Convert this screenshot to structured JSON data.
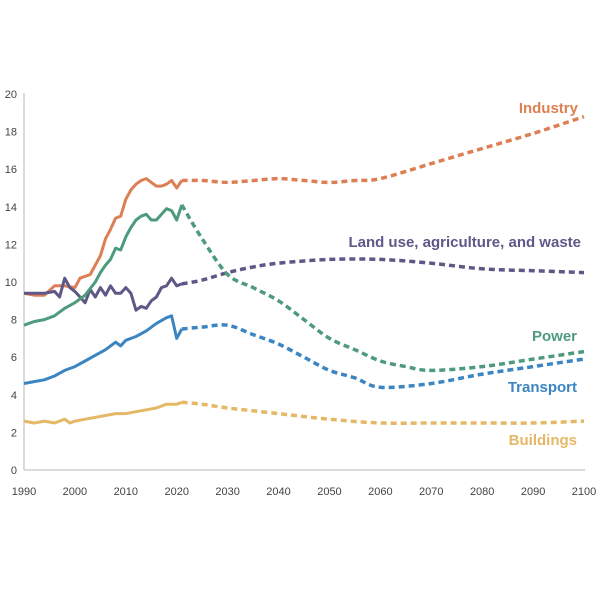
{
  "chart_data": {
    "type": "line",
    "title": "",
    "xlabel": "",
    "ylabel": "",
    "xlim": [
      1990,
      2100
    ],
    "ylim": [
      0,
      20
    ],
    "grid": false,
    "legend": "inline-labels-right",
    "x_ticks": [
      "1990",
      "2000",
      "2010",
      "2020",
      "2030",
      "2040",
      "2050",
      "2060",
      "2070",
      "2080",
      "2090",
      "2100"
    ],
    "y_ticks": [
      "0",
      "2",
      "4",
      "6",
      "8",
      "10",
      "12",
      "14",
      "16",
      "18",
      "20"
    ],
    "series": [
      {
        "name": "Industry",
        "color": "#DD7F54",
        "historical": [
          [
            1990,
            9.4
          ],
          [
            1992,
            9.3
          ],
          [
            1994,
            9.3
          ],
          [
            1996,
            9.8
          ],
          [
            1998,
            9.8
          ],
          [
            2000,
            9.7
          ],
          [
            2001,
            10.2
          ],
          [
            2003,
            10.4
          ],
          [
            2005,
            11.4
          ],
          [
            2006,
            12.3
          ],
          [
            2007,
            12.8
          ],
          [
            2008,
            13.4
          ],
          [
            2009,
            13.5
          ],
          [
            2010,
            14.4
          ],
          [
            2011,
            14.9
          ],
          [
            2012,
            15.2
          ],
          [
            2013,
            15.4
          ],
          [
            2014,
            15.5
          ],
          [
            2015,
            15.3
          ],
          [
            2016,
            15.1
          ],
          [
            2017,
            15.1
          ],
          [
            2018,
            15.2
          ],
          [
            2019,
            15.4
          ],
          [
            2020,
            15.0
          ],
          [
            2021,
            15.4
          ]
        ],
        "projection": [
          [
            2021,
            15.4
          ],
          [
            2025,
            15.4
          ],
          [
            2030,
            15.3
          ],
          [
            2035,
            15.4
          ],
          [
            2040,
            15.5
          ],
          [
            2045,
            15.4
          ],
          [
            2050,
            15.3
          ],
          [
            2055,
            15.4
          ],
          [
            2060,
            15.5
          ],
          [
            2070,
            16.3
          ],
          [
            2080,
            17.1
          ],
          [
            2090,
            17.9
          ],
          [
            2100,
            18.8
          ]
        ]
      },
      {
        "name": "Land use, agriculture, and waste",
        "color": "#5E5887",
        "historical": [
          [
            1990,
            9.4
          ],
          [
            1992,
            9.4
          ],
          [
            1994,
            9.4
          ],
          [
            1996,
            9.5
          ],
          [
            1997,
            9.2
          ],
          [
            1998,
            10.2
          ],
          [
            1999,
            9.7
          ],
          [
            2000,
            9.5
          ],
          [
            2001,
            9.2
          ],
          [
            2002,
            8.9
          ],
          [
            2003,
            9.6
          ],
          [
            2004,
            9.2
          ],
          [
            2005,
            9.7
          ],
          [
            2006,
            9.3
          ],
          [
            2007,
            9.8
          ],
          [
            2008,
            9.4
          ],
          [
            2009,
            9.4
          ],
          [
            2010,
            9.7
          ],
          [
            2011,
            9.4
          ],
          [
            2012,
            8.5
          ],
          [
            2013,
            8.7
          ],
          [
            2014,
            8.6
          ],
          [
            2015,
            9.0
          ],
          [
            2016,
            9.2
          ],
          [
            2017,
            9.7
          ],
          [
            2018,
            9.8
          ],
          [
            2019,
            10.2
          ],
          [
            2020,
            9.8
          ],
          [
            2021,
            9.9
          ]
        ],
        "projection": [
          [
            2021,
            9.9
          ],
          [
            2025,
            10.1
          ],
          [
            2030,
            10.5
          ],
          [
            2035,
            10.8
          ],
          [
            2040,
            11.0
          ],
          [
            2050,
            11.2
          ],
          [
            2060,
            11.2
          ],
          [
            2070,
            11.0
          ],
          [
            2080,
            10.7
          ],
          [
            2090,
            10.6
          ],
          [
            2100,
            10.5
          ]
        ]
      },
      {
        "name": "Power",
        "color": "#4E9A7C",
        "historical": [
          [
            1990,
            7.7
          ],
          [
            1992,
            7.9
          ],
          [
            1994,
            8.0
          ],
          [
            1996,
            8.2
          ],
          [
            1998,
            8.6
          ],
          [
            2000,
            8.9
          ],
          [
            2002,
            9.3
          ],
          [
            2004,
            10.0
          ],
          [
            2005,
            10.5
          ],
          [
            2006,
            10.9
          ],
          [
            2007,
            11.2
          ],
          [
            2008,
            11.8
          ],
          [
            2009,
            11.7
          ],
          [
            2010,
            12.4
          ],
          [
            2011,
            12.9
          ],
          [
            2012,
            13.3
          ],
          [
            2013,
            13.5
          ],
          [
            2014,
            13.6
          ],
          [
            2015,
            13.3
          ],
          [
            2016,
            13.3
          ],
          [
            2017,
            13.6
          ],
          [
            2018,
            13.9
          ],
          [
            2019,
            13.8
          ],
          [
            2020,
            13.3
          ],
          [
            2021,
            14.1
          ]
        ],
        "projection": [
          [
            2021,
            14.1
          ],
          [
            2025,
            12.3
          ],
          [
            2030,
            10.4
          ],
          [
            2035,
            9.7
          ],
          [
            2040,
            9.0
          ],
          [
            2045,
            8.0
          ],
          [
            2050,
            7.0
          ],
          [
            2055,
            6.4
          ],
          [
            2060,
            5.8
          ],
          [
            2065,
            5.5
          ],
          [
            2070,
            5.3
          ],
          [
            2080,
            5.5
          ],
          [
            2090,
            5.9
          ],
          [
            2100,
            6.3
          ]
        ]
      },
      {
        "name": "Transport",
        "color": "#3B85C2",
        "historical": [
          [
            1990,
            4.6
          ],
          [
            1992,
            4.7
          ],
          [
            1994,
            4.8
          ],
          [
            1996,
            5.0
          ],
          [
            1998,
            5.3
          ],
          [
            2000,
            5.5
          ],
          [
            2002,
            5.8
          ],
          [
            2004,
            6.1
          ],
          [
            2006,
            6.4
          ],
          [
            2008,
            6.8
          ],
          [
            2009,
            6.6
          ],
          [
            2010,
            6.9
          ],
          [
            2012,
            7.1
          ],
          [
            2014,
            7.4
          ],
          [
            2016,
            7.8
          ],
          [
            2018,
            8.1
          ],
          [
            2019,
            8.2
          ],
          [
            2020,
            7.0
          ],
          [
            2021,
            7.5
          ]
        ],
        "projection": [
          [
            2021,
            7.5
          ],
          [
            2025,
            7.6
          ],
          [
            2030,
            7.7
          ],
          [
            2035,
            7.2
          ],
          [
            2040,
            6.7
          ],
          [
            2045,
            6.0
          ],
          [
            2050,
            5.3
          ],
          [
            2055,
            4.9
          ],
          [
            2060,
            4.4
          ],
          [
            2070,
            4.6
          ],
          [
            2080,
            5.1
          ],
          [
            2090,
            5.5
          ],
          [
            2100,
            5.9
          ]
        ]
      },
      {
        "name": "Buildings",
        "color": "#E5B865",
        "historical": [
          [
            1990,
            2.6
          ],
          [
            1992,
            2.5
          ],
          [
            1994,
            2.6
          ],
          [
            1996,
            2.5
          ],
          [
            1998,
            2.7
          ],
          [
            1999,
            2.5
          ],
          [
            2000,
            2.6
          ],
          [
            2002,
            2.7
          ],
          [
            2004,
            2.8
          ],
          [
            2006,
            2.9
          ],
          [
            2008,
            3.0
          ],
          [
            2010,
            3.0
          ],
          [
            2012,
            3.1
          ],
          [
            2014,
            3.2
          ],
          [
            2016,
            3.3
          ],
          [
            2018,
            3.5
          ],
          [
            2020,
            3.5
          ],
          [
            2021,
            3.6
          ]
        ],
        "projection": [
          [
            2021,
            3.6
          ],
          [
            2025,
            3.5
          ],
          [
            2030,
            3.3
          ],
          [
            2040,
            3.0
          ],
          [
            2050,
            2.7
          ],
          [
            2060,
            2.5
          ],
          [
            2070,
            2.5
          ],
          [
            2080,
            2.5
          ],
          [
            2090,
            2.5
          ],
          [
            2100,
            2.6
          ]
        ]
      }
    ],
    "labels": [
      {
        "series": "Industry",
        "text": "Industry"
      },
      {
        "series": "Land use, agriculture, and waste",
        "text": "Land use, agriculture, and waste"
      },
      {
        "series": "Power",
        "text": "Power"
      },
      {
        "series": "Transport",
        "text": "Transport"
      },
      {
        "series": "Buildings",
        "text": "Buildings"
      }
    ]
  }
}
